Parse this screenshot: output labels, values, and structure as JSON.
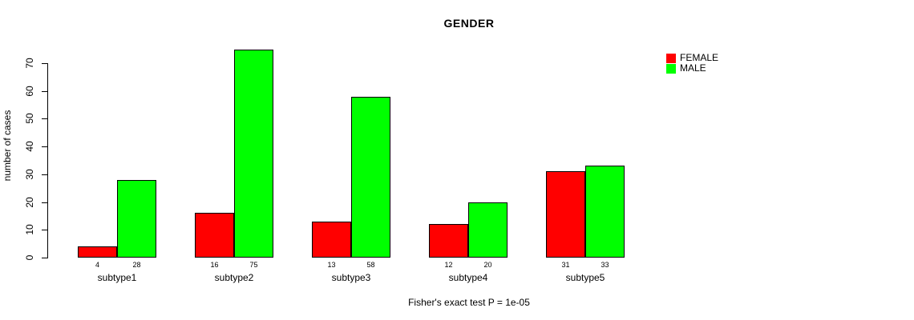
{
  "page": {
    "background_color": "#ffffff",
    "text_color": "#000000"
  },
  "chart_data": {
    "type": "bar",
    "title": "GENDER",
    "ylabel": "number of cases",
    "xlabel": "",
    "caption": "Fisher's exact test P = 1e-05",
    "categories": [
      "subtype1",
      "subtype2",
      "subtype3",
      "subtype4",
      "subtype5"
    ],
    "series": [
      {
        "name": "FEMALE",
        "color": "#ff0000",
        "values": [
          4,
          16,
          13,
          12,
          31
        ]
      },
      {
        "name": "MALE",
        "color": "#00ff00",
        "values": [
          28,
          75,
          58,
          20,
          33
        ]
      }
    ],
    "yticks": [
      0,
      10,
      20,
      30,
      40,
      50,
      60,
      70
    ],
    "ylim": [
      0,
      75
    ],
    "grid": false,
    "bar_value_labels_shown": true,
    "legend_position": "top-right",
    "bar_border_color": "#000000",
    "axis_color": "#000000"
  }
}
